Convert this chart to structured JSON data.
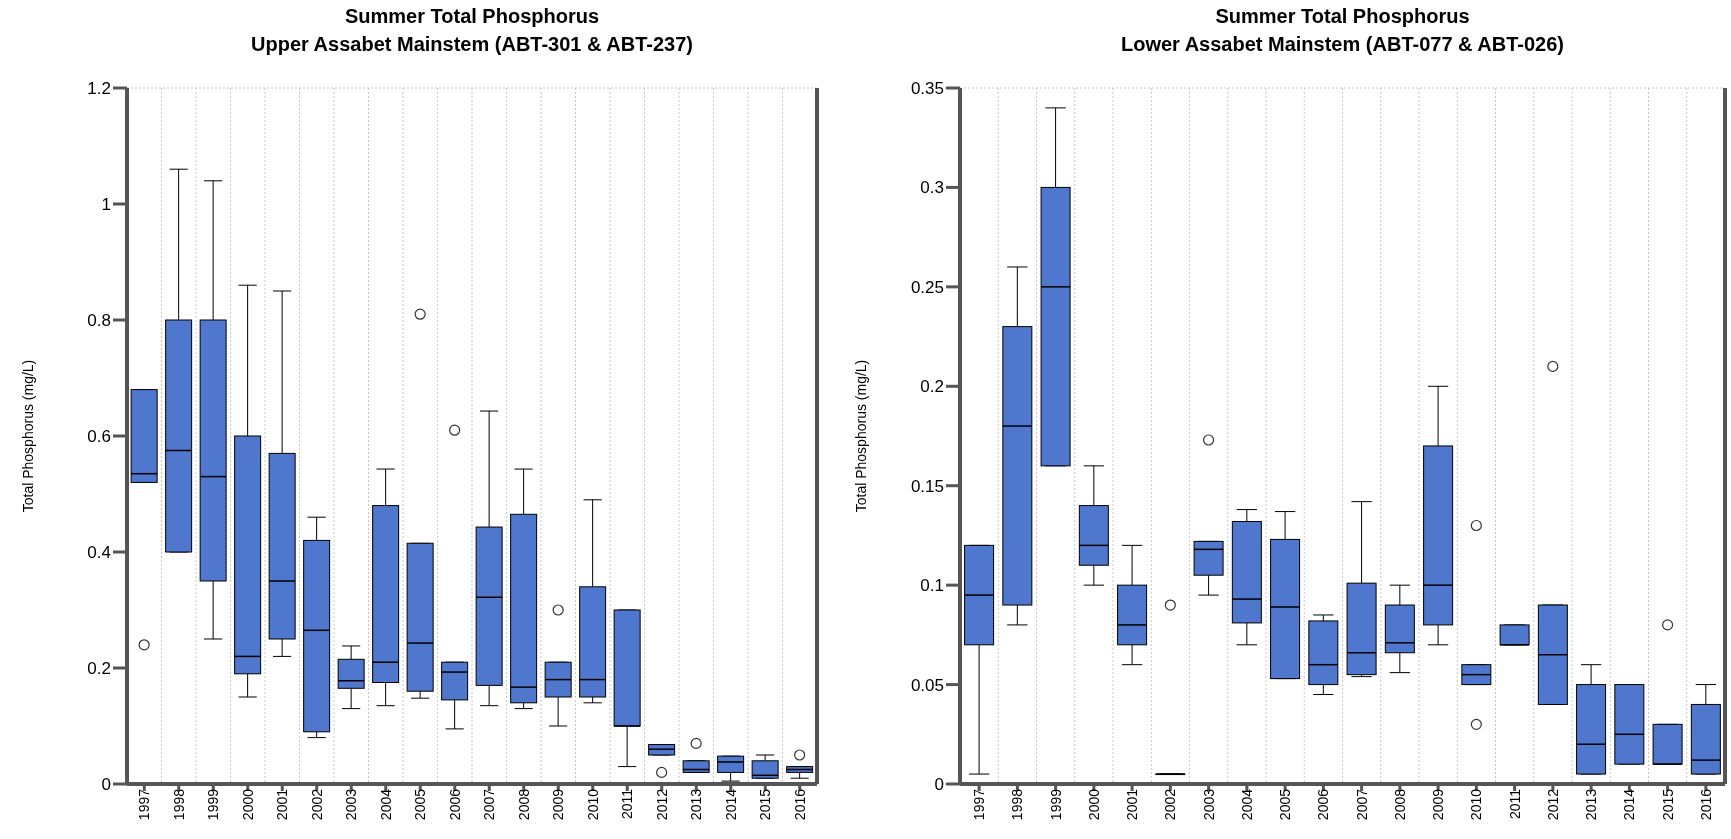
{
  "chart_data": [
    {
      "type": "box",
      "title": "Summer Total Phosphorus\nUpper Assabet Mainstem (ABT-301 & ABT-237)",
      "ylabel": "Total Phosphorus (mg/L)",
      "color": "#4f77cd",
      "grid": true,
      "ylim": [
        0,
        1.2
      ],
      "yticks": [
        0,
        0.2,
        0.4,
        0.6,
        0.8,
        1,
        1.2
      ],
      "categories": [
        "1997",
        "1998",
        "1999",
        "2000",
        "2001",
        "2002",
        "2003",
        "2004",
        "2005",
        "2006",
        "2007",
        "2008",
        "2009",
        "2010",
        "2011",
        "2012",
        "2013",
        "2014",
        "2015",
        "2016"
      ],
      "boxes": [
        {
          "low": 0.52,
          "q1": 0.52,
          "median": 0.535,
          "q3": 0.68,
          "high": 0.68,
          "outliers": [
            0.24
          ]
        },
        {
          "low": 0.4,
          "q1": 0.4,
          "median": 0.575,
          "q3": 0.8,
          "high": 1.06
        },
        {
          "low": 0.25,
          "q1": 0.35,
          "median": 0.53,
          "q3": 0.8,
          "high": 1.04
        },
        {
          "low": 0.15,
          "q1": 0.19,
          "median": 0.22,
          "q3": 0.6,
          "high": 0.86
        },
        {
          "low": 0.22,
          "q1": 0.25,
          "median": 0.35,
          "q3": 0.57,
          "high": 0.85
        },
        {
          "low": 0.08,
          "q1": 0.09,
          "median": 0.265,
          "q3": 0.42,
          "high": 0.46
        },
        {
          "low": 0.13,
          "q1": 0.165,
          "median": 0.178,
          "q3": 0.215,
          "high": 0.238
        },
        {
          "low": 0.135,
          "q1": 0.175,
          "median": 0.21,
          "q3": 0.48,
          "high": 0.543
        },
        {
          "low": 0.148,
          "q1": 0.16,
          "median": 0.243,
          "q3": 0.415,
          "high": 0.415,
          "outliers": [
            0.81
          ]
        },
        {
          "low": 0.095,
          "q1": 0.145,
          "median": 0.193,
          "q3": 0.21,
          "high": 0.21,
          "outliers": [
            0.61
          ]
        },
        {
          "low": 0.135,
          "q1": 0.17,
          "median": 0.322,
          "q3": 0.443,
          "high": 0.643
        },
        {
          "low": 0.13,
          "q1": 0.14,
          "median": 0.167,
          "q3": 0.465,
          "high": 0.543
        },
        {
          "low": 0.1,
          "q1": 0.15,
          "median": 0.18,
          "q3": 0.21,
          "high": 0.21,
          "outliers": [
            0.3
          ]
        },
        {
          "low": 0.14,
          "q1": 0.15,
          "median": 0.18,
          "q3": 0.34,
          "high": 0.49
        },
        {
          "low": 0.03,
          "q1": 0.1,
          "median": 0.1,
          "q3": 0.3,
          "high": 0.3
        },
        {
          "low": 0.05,
          "q1": 0.05,
          "median": 0.06,
          "q3": 0.068,
          "high": 0.068,
          "outliers": [
            0.02
          ]
        },
        {
          "low": 0.02,
          "q1": 0.02,
          "median": 0.025,
          "q3": 0.04,
          "high": 0.04,
          "outliers": [
            0.07
          ]
        },
        {
          "low": 0.005,
          "q1": 0.02,
          "median": 0.038,
          "q3": 0.048,
          "high": 0.048
        },
        {
          "low": 0.01,
          "q1": 0.01,
          "median": 0.015,
          "q3": 0.04,
          "high": 0.05
        },
        {
          "low": 0.01,
          "q1": 0.02,
          "median": 0.025,
          "q3": 0.03,
          "high": 0.03,
          "outliers": [
            0.05
          ]
        }
      ]
    },
    {
      "type": "box",
      "title": "Summer Total Phosphorus\nLower Assabet Mainstem (ABT-077 & ABT-026)",
      "ylabel": "Total Phosphorus (mg/L)",
      "color": "#4f77cd",
      "grid": true,
      "ylim": [
        0,
        0.35
      ],
      "yticks": [
        0,
        0.05,
        0.1,
        0.15,
        0.2,
        0.25,
        0.3,
        0.35
      ],
      "categories": [
        "1997",
        "1998",
        "1999",
        "2000",
        "2001",
        "2002",
        "2003",
        "2004",
        "2005",
        "2006",
        "2007",
        "2008",
        "2009",
        "2010",
        "2011",
        "2012",
        "2013",
        "2014",
        "2015",
        "2016"
      ],
      "boxes": [
        {
          "low": 0.005,
          "q1": 0.07,
          "median": 0.095,
          "q3": 0.12,
          "high": 0.12
        },
        {
          "low": 0.08,
          "q1": 0.09,
          "median": 0.18,
          "q3": 0.23,
          "high": 0.26
        },
        {
          "low": 0.16,
          "q1": 0.16,
          "median": 0.25,
          "q3": 0.3,
          "high": 0.34
        },
        {
          "low": 0.1,
          "q1": 0.11,
          "median": 0.12,
          "q3": 0.14,
          "high": 0.16
        },
        {
          "low": 0.06,
          "q1": 0.07,
          "median": 0.08,
          "q3": 0.1,
          "high": 0.12
        },
        {
          "low": 0.005,
          "q1": 0.005,
          "median": 0.005,
          "q3": 0.005,
          "high": 0.005,
          "outliers": [
            0.09
          ]
        },
        {
          "low": 0.095,
          "q1": 0.105,
          "median": 0.118,
          "q3": 0.122,
          "high": 0.122,
          "outliers": [
            0.173
          ]
        },
        {
          "low": 0.07,
          "q1": 0.081,
          "median": 0.093,
          "q3": 0.132,
          "high": 0.138
        },
        {
          "low": 0.053,
          "q1": 0.053,
          "median": 0.089,
          "q3": 0.123,
          "high": 0.137
        },
        {
          "low": 0.045,
          "q1": 0.05,
          "median": 0.06,
          "q3": 0.082,
          "high": 0.085
        },
        {
          "low": 0.054,
          "q1": 0.055,
          "median": 0.066,
          "q3": 0.101,
          "high": 0.142
        },
        {
          "low": 0.056,
          "q1": 0.066,
          "median": 0.071,
          "q3": 0.09,
          "high": 0.1
        },
        {
          "low": 0.07,
          "q1": 0.08,
          "median": 0.1,
          "q3": 0.17,
          "high": 0.2
        },
        {
          "low": 0.05,
          "q1": 0.05,
          "median": 0.055,
          "q3": 0.06,
          "high": 0.06,
          "outliers": [
            0.13,
            0.03
          ]
        },
        {
          "low": 0.07,
          "q1": 0.07,
          "median": 0.07,
          "q3": 0.08,
          "high": 0.08
        },
        {
          "low": 0.04,
          "q1": 0.04,
          "median": 0.065,
          "q3": 0.09,
          "high": 0.09,
          "outliers": [
            0.21
          ]
        },
        {
          "low": 0.005,
          "q1": 0.005,
          "median": 0.02,
          "q3": 0.05,
          "high": 0.06
        },
        {
          "low": 0.01,
          "q1": 0.01,
          "median": 0.025,
          "q3": 0.05,
          "high": 0.05
        },
        {
          "low": 0.01,
          "q1": 0.01,
          "median": 0.01,
          "q3": 0.03,
          "high": 0.03,
          "outliers": [
            0.08
          ]
        },
        {
          "low": 0.005,
          "q1": 0.005,
          "median": 0.012,
          "q3": 0.04,
          "high": 0.05
        }
      ]
    }
  ]
}
